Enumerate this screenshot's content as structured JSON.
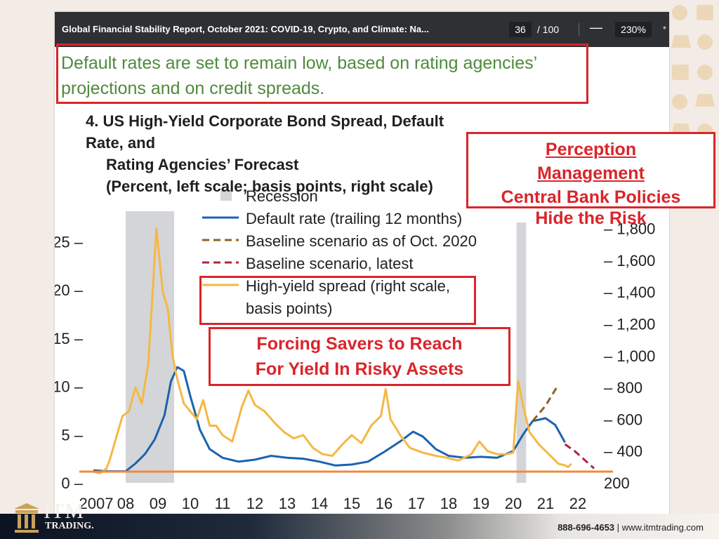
{
  "toolbar": {
    "title": "Global Financial Stability Report, October 2021: COVID-19, Crypto, and Climate: Na...",
    "page": "36",
    "page_total": "/ 100",
    "zoom": "230%",
    "minus_symbol": "—"
  },
  "subtitle": {
    "line1": "Default rates are set to remain low, based on rating agencies’",
    "line2": "projections and on credit spreads."
  },
  "figure_title": {
    "line1": "4. US High-Yield Corporate Bond Spread, Default Rate, and",
    "line2": "Rating Agencies’ Forecast",
    "line3": "(Percent, left scale; basis points, right scale)"
  },
  "callouts": {
    "perception1": "Perception",
    "perception2": "Management",
    "perception3": "Central Bank Policies",
    "perception4": "Hide the Risk",
    "forcing1": "Forcing Savers to Reach",
    "forcing2": "For Yield In Risky Assets"
  },
  "footer": {
    "phone": "888-696-4653",
    "separator": "|",
    "website": "www.itmtrading.com",
    "brand": "ITM",
    "brand_sub": "TRADING."
  },
  "colors": {
    "default_rate": "#1b63b0",
    "baseline_2020": "#8c6420",
    "baseline_latest": "#b3243a",
    "hy_spread": "#f5b844",
    "recession": "#d4d5d8",
    "highlight_line": "#ef8a3c",
    "annotation_red": "#d9252b"
  },
  "chart_data": {
    "type": "line",
    "x_ticks": [
      "2007",
      "08",
      "09",
      "10",
      "11",
      "12",
      "13",
      "14",
      "15",
      "16",
      "17",
      "18",
      "19",
      "20",
      "21",
      "22"
    ],
    "left_axis": {
      "ticks": [
        0,
        5,
        10,
        15,
        20,
        25
      ],
      "ylim": [
        0,
        28
      ]
    },
    "right_axis": {
      "ticks": [
        200,
        400,
        600,
        800,
        1000,
        1200,
        1400,
        1600,
        1800
      ],
      "ylim": [
        200,
        1860
      ]
    },
    "legend": [
      {
        "name": "Recession",
        "style": "box"
      },
      {
        "name": "Default rate (trailing 12 months)",
        "style": "solid"
      },
      {
        "name": "Baseline scenario as of Oct. 2020",
        "style": "dashed"
      },
      {
        "name": "Baseline scenario, latest",
        "style": "dashed"
      },
      {
        "name": "High-yield spread (right scale,",
        "style": "solid"
      },
      {
        "name": "basis points)",
        "style": "none"
      }
    ],
    "recessions": [
      [
        2008.0,
        2009.5
      ],
      [
        2020.1,
        2020.4
      ]
    ],
    "series": [
      {
        "name": "Default rate (trailing 12 months)",
        "axis": "left",
        "points": [
          [
            2007.0,
            1.3
          ],
          [
            2007.5,
            1.2
          ],
          [
            2008.0,
            1.2
          ],
          [
            2008.3,
            2.0
          ],
          [
            2008.6,
            3.0
          ],
          [
            2008.9,
            4.5
          ],
          [
            2009.2,
            7.0
          ],
          [
            2009.4,
            10.5
          ],
          [
            2009.6,
            12.0
          ],
          [
            2009.8,
            11.6
          ],
          [
            2010.0,
            9.0
          ],
          [
            2010.3,
            5.5
          ],
          [
            2010.6,
            3.5
          ],
          [
            2011.0,
            2.6
          ],
          [
            2011.5,
            2.2
          ],
          [
            2012.0,
            2.4
          ],
          [
            2012.5,
            2.8
          ],
          [
            2013.0,
            2.6
          ],
          [
            2013.5,
            2.5
          ],
          [
            2014.0,
            2.2
          ],
          [
            2014.5,
            1.8
          ],
          [
            2015.0,
            1.9
          ],
          [
            2015.5,
            2.2
          ],
          [
            2016.0,
            3.2
          ],
          [
            2016.5,
            4.3
          ],
          [
            2016.9,
            5.3
          ],
          [
            2017.2,
            4.8
          ],
          [
            2017.6,
            3.5
          ],
          [
            2018.0,
            2.8
          ],
          [
            2018.5,
            2.6
          ],
          [
            2019.0,
            2.7
          ],
          [
            2019.5,
            2.6
          ],
          [
            2020.0,
            3.3
          ],
          [
            2020.3,
            5.0
          ],
          [
            2020.6,
            6.4
          ],
          [
            2021.0,
            6.7
          ],
          [
            2021.3,
            6.0
          ],
          [
            2021.6,
            4.2
          ]
        ]
      },
      {
        "name": "Baseline scenario as of Oct. 2020",
        "axis": "left",
        "points": [
          [
            2020.6,
            6.4
          ],
          [
            2021.0,
            8.0
          ],
          [
            2021.4,
            10.2
          ]
        ]
      },
      {
        "name": "Baseline scenario, latest",
        "axis": "left",
        "points": [
          [
            2021.6,
            4.0
          ],
          [
            2021.9,
            3.3
          ],
          [
            2022.2,
            2.4
          ],
          [
            2022.5,
            1.5
          ]
        ]
      },
      {
        "name": "High-yield spread (right scale, basis points)",
        "axis": "right",
        "points": [
          [
            2007.0,
            270
          ],
          [
            2007.2,
            260
          ],
          [
            2007.4,
            290
          ],
          [
            2007.5,
            340
          ],
          [
            2007.7,
            480
          ],
          [
            2007.9,
            620
          ],
          [
            2008.1,
            650
          ],
          [
            2008.3,
            800
          ],
          [
            2008.5,
            700
          ],
          [
            2008.7,
            950
          ],
          [
            2008.85,
            1450
          ],
          [
            2008.95,
            1800
          ],
          [
            2009.05,
            1600
          ],
          [
            2009.15,
            1400
          ],
          [
            2009.3,
            1300
          ],
          [
            2009.45,
            1000
          ],
          [
            2009.6,
            850
          ],
          [
            2009.8,
            700
          ],
          [
            2010.0,
            650
          ],
          [
            2010.2,
            600
          ],
          [
            2010.4,
            720
          ],
          [
            2010.6,
            560
          ],
          [
            2010.8,
            560
          ],
          [
            2011.0,
            500
          ],
          [
            2011.3,
            460
          ],
          [
            2011.6,
            680
          ],
          [
            2011.8,
            780
          ],
          [
            2012.0,
            690
          ],
          [
            2012.3,
            650
          ],
          [
            2012.6,
            580
          ],
          [
            2012.9,
            520
          ],
          [
            2013.2,
            480
          ],
          [
            2013.5,
            500
          ],
          [
            2013.8,
            420
          ],
          [
            2014.1,
            380
          ],
          [
            2014.4,
            370
          ],
          [
            2014.7,
            440
          ],
          [
            2015.0,
            500
          ],
          [
            2015.3,
            450
          ],
          [
            2015.6,
            560
          ],
          [
            2015.9,
            620
          ],
          [
            2016.05,
            790
          ],
          [
            2016.2,
            600
          ],
          [
            2016.5,
            500
          ],
          [
            2016.8,
            420
          ],
          [
            2017.2,
            390
          ],
          [
            2017.6,
            370
          ],
          [
            2017.9,
            360
          ],
          [
            2018.3,
            340
          ],
          [
            2018.7,
            380
          ],
          [
            2018.95,
            460
          ],
          [
            2019.2,
            400
          ],
          [
            2019.5,
            380
          ],
          [
            2019.8,
            380
          ],
          [
            2020.0,
            390
          ],
          [
            2020.15,
            840
          ],
          [
            2020.3,
            690
          ],
          [
            2020.5,
            520
          ],
          [
            2020.8,
            440
          ],
          [
            2021.1,
            380
          ],
          [
            2021.4,
            320
          ],
          [
            2021.6,
            310
          ],
          [
            2021.7,
            300
          ],
          [
            2021.8,
            320
          ]
        ]
      }
    ]
  }
}
